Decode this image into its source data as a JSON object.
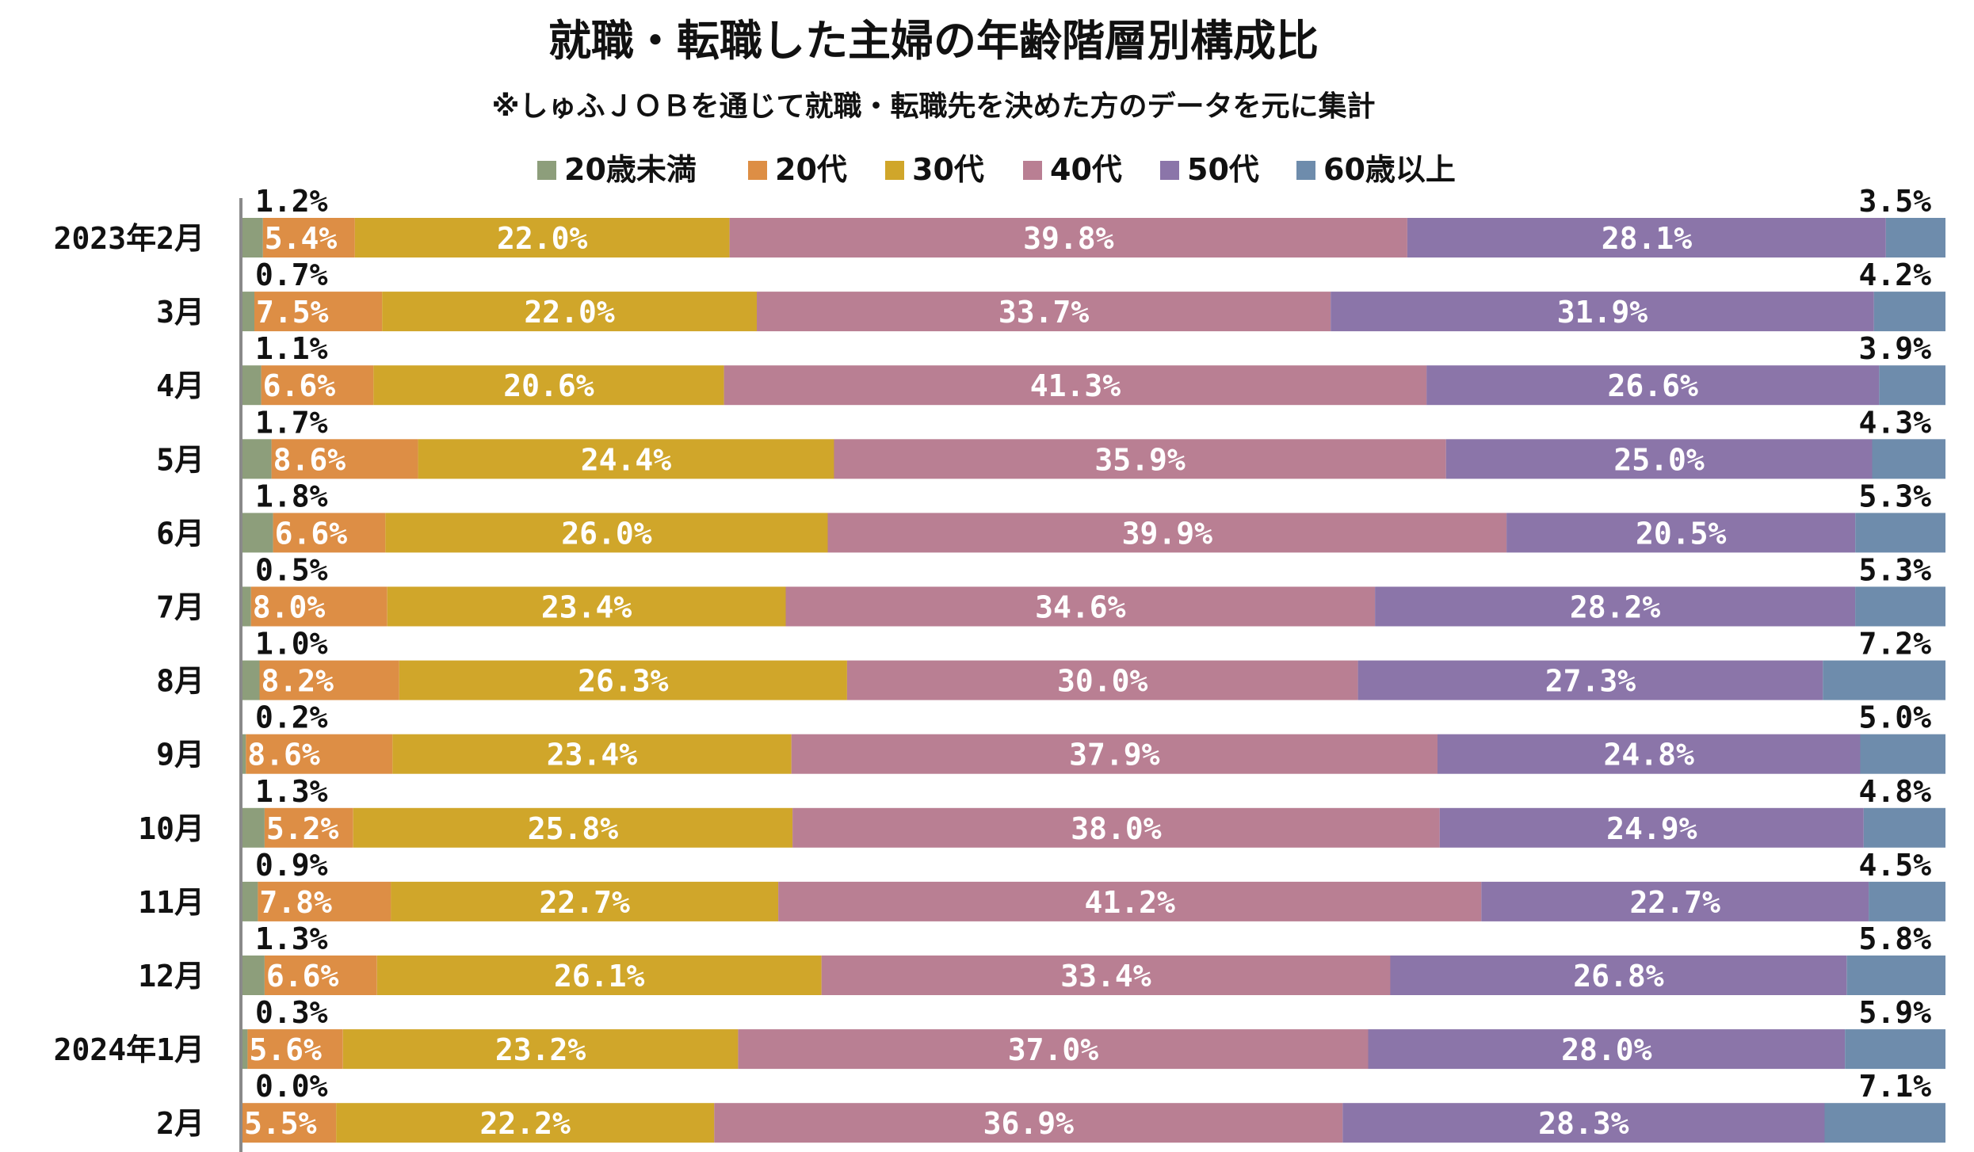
{
  "chart_data": {
    "type": "bar",
    "orientation": "horizontal",
    "stacked": true,
    "normalized_percent": true,
    "title": "就職・転職した主婦の年齢階層別構成比",
    "subtitle": "※しゅふＪＯＢを通じて就職・転職先を決めた方のデータを元に集計",
    "xlim": [
      0,
      100
    ],
    "legend_position": "top",
    "categories": [
      "2023年2月",
      "3月",
      "4月",
      "5月",
      "6月",
      "7月",
      "8月",
      "9月",
      "10月",
      "11月",
      "12月",
      "2024年1月",
      "2月"
    ],
    "series": [
      {
        "name": "20歳未満",
        "color": "#8d9e7b",
        "values": [
          1.2,
          0.7,
          1.1,
          1.7,
          1.8,
          0.5,
          1.0,
          0.2,
          1.3,
          0.9,
          1.3,
          0.3,
          0.0
        ]
      },
      {
        "name": "20代",
        "color": "#dd8e45",
        "values": [
          5.4,
          7.5,
          6.6,
          8.6,
          6.6,
          8.0,
          8.2,
          8.6,
          5.2,
          7.8,
          6.6,
          5.6,
          5.5
        ]
      },
      {
        "name": "30代",
        "color": "#d0a62a",
        "values": [
          22.0,
          22.0,
          20.6,
          24.4,
          26.0,
          23.4,
          26.3,
          23.4,
          25.8,
          22.7,
          26.1,
          23.2,
          22.2
        ]
      },
      {
        "name": "40代",
        "color": "#b97f93",
        "values": [
          39.8,
          33.7,
          41.3,
          35.9,
          39.9,
          34.6,
          30.0,
          37.9,
          38.0,
          41.2,
          33.4,
          37.0,
          36.9
        ]
      },
      {
        "name": "50代",
        "color": "#8b75a9",
        "values": [
          28.1,
          31.9,
          26.6,
          25.0,
          20.5,
          28.2,
          27.3,
          24.8,
          24.9,
          22.7,
          26.8,
          28.0,
          28.3
        ]
      },
      {
        "name": "60歳以上",
        "color": "#6e8cac",
        "values": [
          3.5,
          4.2,
          3.9,
          4.3,
          5.3,
          5.3,
          7.2,
          5.0,
          4.8,
          4.5,
          5.8,
          5.9,
          7.1
        ]
      }
    ],
    "data_labels": [
      [
        "1.2%",
        "5.4%",
        "22.0%",
        "39.8%",
        "28.1%",
        "3.5%"
      ],
      [
        "0.7%",
        "7.5%",
        "22.0%",
        "33.7%",
        "31.9%",
        "4.2%"
      ],
      [
        "1.1%",
        "6.6%",
        "20.6%",
        "41.3%",
        "26.6%",
        "3.9%"
      ],
      [
        "1.7%",
        "8.6%",
        "24.4%",
        "35.9%",
        "25.0%",
        "4.3%"
      ],
      [
        "1.8%",
        "6.6%",
        "26.0%",
        "39.9%",
        "20.5%",
        "5.3%"
      ],
      [
        "0.5%",
        "8.0%",
        "23.4%",
        "34.6%",
        "28.2%",
        "5.3%"
      ],
      [
        "1.0%",
        "8.2%",
        "26.3%",
        "30.0%",
        "27.3%",
        "7.2%"
      ],
      [
        "0.2%",
        "8.6%",
        "23.4%",
        "37.9%",
        "24.8%",
        "5.0%"
      ],
      [
        "1.3%",
        "5.2%",
        "25.8%",
        "38.0%",
        "24.9%",
        "4.8%"
      ],
      [
        "0.9%",
        "7.8%",
        "22.7%",
        "41.2%",
        "22.7%",
        "4.5%"
      ],
      [
        "1.3%",
        "6.6%",
        "26.1%",
        "33.4%",
        "26.8%",
        "5.8%"
      ],
      [
        "0.3%",
        "5.6%",
        "23.2%",
        "37.0%",
        "28.0%",
        "5.9%"
      ],
      [
        "0.0%",
        "5.5%",
        "22.2%",
        "36.9%",
        "28.3%",
        "7.1%"
      ]
    ]
  }
}
